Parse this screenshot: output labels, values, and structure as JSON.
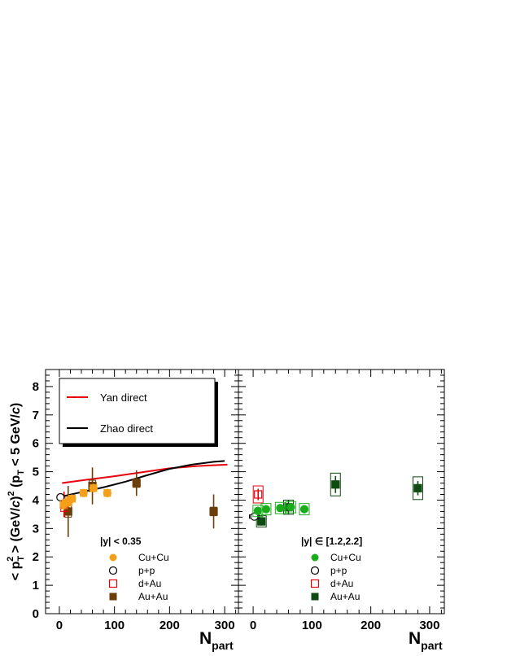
{
  "chart_data": [
    {
      "type": "scatter",
      "panel": "left",
      "ylabel": "< p_T^2 > (GeV/c)^2 (p_T < 5 GeV/c)",
      "xlabel": "N_part",
      "xlim": [
        -25,
        325
      ],
      "ylim": [
        0,
        8.6
      ],
      "x_ticks": [
        "0",
        "100",
        "200",
        "300"
      ],
      "y_ticks": [
        "0",
        "1",
        "2",
        "3",
        "4",
        "5",
        "6",
        "7",
        "8"
      ],
      "rapidity_label": "|y| < 0.35",
      "lines_legend": [
        "Yan direct",
        "Zhao direct"
      ],
      "lines": [
        {
          "name": "Yan direct",
          "color": "#e8000b",
          "x": [
            5,
            50,
            100,
            150,
            200,
            250,
            305
          ],
          "y": [
            4.6,
            4.72,
            4.84,
            4.98,
            5.12,
            5.2,
            5.25
          ]
        },
        {
          "name": "Zhao direct",
          "color": "#000000",
          "x": [
            3,
            40,
            80,
            120,
            160,
            200,
            240,
            280,
            300
          ],
          "y": [
            4.12,
            4.28,
            4.45,
            4.65,
            4.88,
            5.1,
            5.25,
            5.35,
            5.38
          ]
        }
      ],
      "series": [
        {
          "name": "Cu+Cu",
          "marker": "circle",
          "filled": true,
          "color": "#f5a019",
          "points": [
            {
              "x": 8,
              "y": 3.85,
              "err": 0.2,
              "sys": 0.15
            },
            {
              "x": 17,
              "y": 3.95,
              "err": 0.2,
              "sys": 0.15
            },
            {
              "x": 23,
              "y": 4.05,
              "err": 0.15,
              "sys": 0.12
            },
            {
              "x": 44,
              "y": 4.25,
              "err": 0.12,
              "sys": 0.12
            },
            {
              "x": 62,
              "y": 4.42,
              "err": 0.15,
              "sys": 0.12
            },
            {
              "x": 87,
              "y": 4.25,
              "err": 0.15,
              "sys": 0.12
            }
          ]
        },
        {
          "name": "p+p",
          "marker": "circle",
          "filled": false,
          "color": "#000000",
          "points": [
            {
              "x": 2,
              "y": 4.1,
              "err": 0.05,
              "sys": 0.06
            }
          ]
        },
        {
          "name": "d+Au",
          "marker": "square",
          "filled": false,
          "color": "#e8000b",
          "points": [
            {
              "x": 8.5,
              "y": 3.85,
              "err": 0.45,
              "sys": 0.25
            }
          ]
        },
        {
          "name": "Au+Au",
          "marker": "square",
          "filled": true,
          "color": "#6b3e0a",
          "points": [
            {
              "x": 16,
              "y": 3.6,
              "err": 0.9,
              "sys": 0.2
            },
            {
              "x": 60,
              "y": 4.5,
              "err": 0.65,
              "sys": 0.2
            },
            {
              "x": 140,
              "y": 4.6,
              "err": 0.45,
              "sys": 0.15
            },
            {
              "x": 280,
              "y": 3.6,
              "err": 0.6,
              "sys": 0.15
            }
          ]
        }
      ],
      "legend": [
        "Cu+Cu",
        "p+p",
        "d+Au",
        "Au+Au"
      ]
    },
    {
      "type": "scatter",
      "panel": "right",
      "xlabel": "N_part",
      "xlim": [
        -25,
        325
      ],
      "ylim": [
        0,
        8.6
      ],
      "x_ticks": [
        "0",
        "100",
        "200",
        "300"
      ],
      "rapidity_label": "|y| ∈ [1.2,2.2]",
      "series": [
        {
          "name": "Cu+Cu",
          "marker": "circle",
          "filled": true,
          "color": "#1aac1a",
          "points": [
            {
              "x": 8,
              "y": 3.62,
              "err": 0.15,
              "sys": 0.2
            },
            {
              "x": 22,
              "y": 3.68,
              "err": 0.12,
              "sys": 0.2
            },
            {
              "x": 46,
              "y": 3.72,
              "err": 0.12,
              "sys": 0.2
            },
            {
              "x": 64,
              "y": 3.75,
              "err": 0.12,
              "sys": 0.2
            },
            {
              "x": 87,
              "y": 3.68,
              "err": 0.12,
              "sys": 0.2
            }
          ]
        },
        {
          "name": "p+p",
          "marker": "circle",
          "filled": false,
          "color": "#000000",
          "points": [
            {
              "x": 2,
              "y": 3.42,
              "err": 0.05,
              "sys": 0.06
            }
          ]
        },
        {
          "name": "d+Au",
          "marker": "square",
          "filled": false,
          "color": "#e8000b",
          "points": [
            {
              "x": 8.5,
              "y": 4.2,
              "err": 0.2,
              "sys": 0.3
            }
          ]
        },
        {
          "name": "Au+Au",
          "marker": "square",
          "filled": true,
          "color": "#0f4a12",
          "points": [
            {
              "x": 14,
              "y": 3.25,
              "err": 0.15,
              "sys": 0.2
            },
            {
              "x": 60,
              "y": 3.75,
              "err": 0.25,
              "sys": 0.25
            },
            {
              "x": 140,
              "y": 4.55,
              "err": 0.3,
              "sys": 0.4
            },
            {
              "x": 280,
              "y": 4.42,
              "err": 0.25,
              "sys": 0.4
            }
          ]
        }
      ],
      "legend": [
        "Cu+Cu",
        "p+p",
        "d+Au",
        "Au+Au"
      ]
    }
  ]
}
